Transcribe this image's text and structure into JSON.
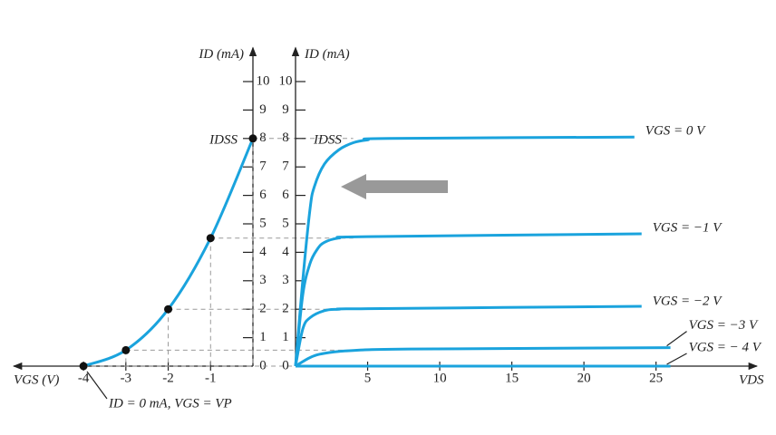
{
  "chart_data": [
    {
      "type": "line",
      "xlabel": "VGS (V)",
      "ylabel": "ID (mA)",
      "x": [
        -4,
        -3,
        -2,
        -1,
        0
      ],
      "series": [
        {
          "color": "#1aa3dd",
          "values": [
            0,
            0.56,
            2,
            4.5,
            8
          ]
        }
      ],
      "markers": true,
      "xlim": [
        -5.65,
        0
      ],
      "ylim": [
        0,
        11
      ],
      "xticks": [
        -4,
        -3,
        -2,
        -1
      ],
      "yticks": [
        0,
        1,
        2,
        3,
        4,
        5,
        6,
        7,
        8,
        9,
        10
      ],
      "annotations": [
        "IDSS",
        "ID = 0 mA, VGS = VP"
      ]
    },
    {
      "type": "line",
      "xlabel": "VDS",
      "ylabel": "ID (mA)",
      "series": [
        {
          "name": "VGS = 0 V",
          "color": "#1aa3dd",
          "x": [
            0,
            0.5,
            1,
            1.3,
            2,
            3,
            4,
            5,
            6.5,
            23.5
          ],
          "values": [
            0,
            3,
            5.5,
            6.3,
            7.1,
            7.6,
            7.85,
            7.95,
            8,
            8.05
          ]
        },
        {
          "name": "VGS = −1 V",
          "color": "#1aa3dd",
          "x": [
            0,
            0.5,
            1,
            1.5,
            2,
            3,
            5,
            24
          ],
          "values": [
            0,
            2.5,
            3.6,
            4.1,
            4.35,
            4.5,
            4.55,
            4.65
          ]
        },
        {
          "name": "VGS = −2 V",
          "color": "#1aa3dd",
          "x": [
            0,
            0.5,
            1,
            2,
            3,
            5,
            24
          ],
          "values": [
            0,
            1.3,
            1.7,
            1.95,
            2,
            2.02,
            2.1
          ]
        },
        {
          "name": "VGS = −3 V",
          "color": "#1aa3dd",
          "x": [
            0,
            1,
            2,
            4,
            8,
            26
          ],
          "values": [
            0,
            0.3,
            0.45,
            0.55,
            0.6,
            0.65
          ]
        },
        {
          "name": "VGS = − 4 V",
          "color": "#1aa3dd",
          "x": [
            0,
            26
          ],
          "values": [
            0,
            0
          ]
        }
      ],
      "xlim": [
        0,
        32
      ],
      "ylim": [
        0,
        11
      ],
      "xticks": [
        5,
        10,
        15,
        20,
        25
      ],
      "yticks": [
        0,
        1,
        2,
        3,
        4,
        5,
        6,
        7,
        8,
        9,
        10
      ],
      "annotations": [
        "IDSS"
      ]
    }
  ]
}
